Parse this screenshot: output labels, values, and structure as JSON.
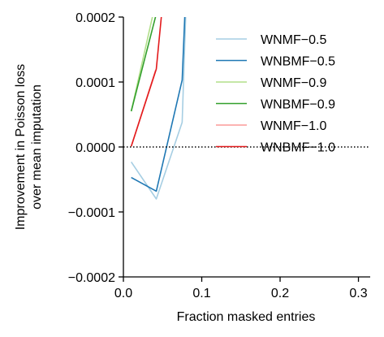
{
  "chart_data": {
    "type": "line",
    "xlabel": "Fraction masked entries",
    "ylabel_lines": [
      "Improvement in Poisson loss",
      "over mean imputation"
    ],
    "xlim": [
      0.0,
      0.315
    ],
    "ylim": [
      -0.0002,
      0.0002
    ],
    "xticks": [
      0.0,
      0.1,
      0.2,
      0.3
    ],
    "xtick_labels": [
      "0.0",
      "0.1",
      "0.2",
      "0.3"
    ],
    "yticks": [
      -0.0002,
      -0.0001,
      0.0,
      0.0001,
      0.0002
    ],
    "ytick_labels": [
      "−0.0002",
      "−0.0001",
      "0.0000",
      "0.0001",
      "0.0002"
    ],
    "reference_line": {
      "y": 0.0,
      "style": "dotted",
      "color": "#000000"
    },
    "legend_position": "top-right",
    "series": [
      {
        "name": "WNMF−0.5",
        "color": "#a6cee3",
        "x": [
          0.01,
          0.042,
          0.075,
          0.08
        ],
        "y": [
          -2.3e-05,
          -8e-05,
          3.8e-05,
          0.00022
        ]
      },
      {
        "name": "WNBMF−0.5",
        "color": "#1f78b4",
        "x": [
          0.01,
          0.042,
          0.075,
          0.079
        ],
        "y": [
          -4.7e-05,
          -6.8e-05,
          0.000103,
          0.00022
        ]
      },
      {
        "name": "WNMF−0.9",
        "color": "#b2df8a",
        "x": [
          0.01,
          0.037
        ],
        "y": [
          5.5e-05,
          0.0002
        ]
      },
      {
        "name": "WNBMF−0.9",
        "color": "#33a02c",
        "x": [
          0.01,
          0.042,
          0.045
        ],
        "y": [
          5.5e-05,
          0.000205,
          0.00022
        ]
      },
      {
        "name": "WNMF−1.0",
        "color": "#fb9a99",
        "x": [
          0.01,
          0.041
        ],
        "y": [
          1e-06,
          0.000118
        ]
      },
      {
        "name": "WNBMF−1.0",
        "color": "#e31a1c",
        "x": [
          0.01,
          0.042,
          0.05
        ],
        "y": [
          1e-06,
          0.00012,
          0.00022
        ]
      }
    ]
  }
}
